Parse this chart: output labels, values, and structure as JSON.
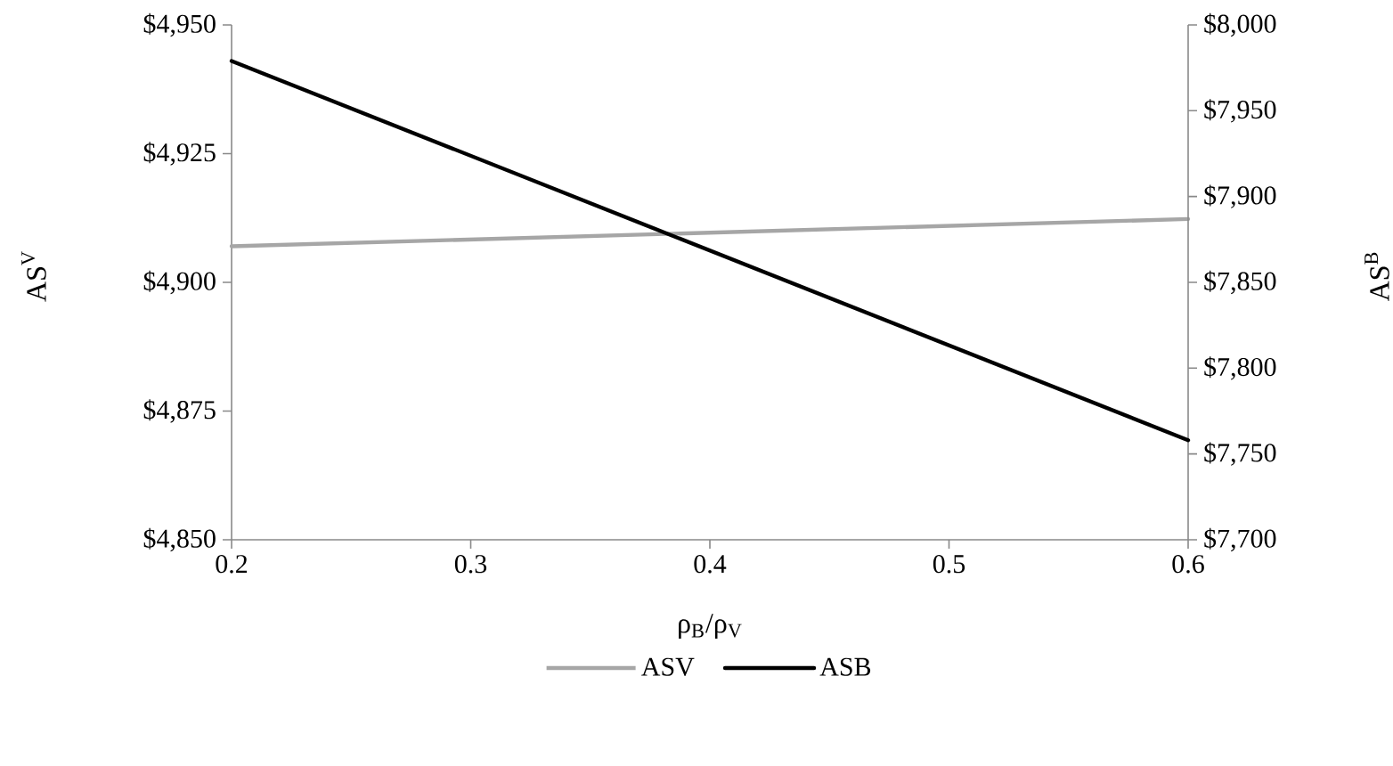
{
  "chart_data": {
    "type": "line",
    "xlabel": "ρ$_{B}$/ρ$_{V}$",
    "ylabel": "AS$^{V}$",
    "y2label": "AS$^{B}$",
    "x": [
      0.2,
      0.6
    ],
    "series": [
      {
        "name": "ASV",
        "color": "#a6a6a6",
        "values": [
          4907,
          4912.3
        ]
      },
      {
        "name": "ASB",
        "color": "#000000",
        "values": [
          7979,
          7758
        ],
        "axis": "y2"
      }
    ],
    "xlim": [
      0.2,
      0.6
    ],
    "xticks": [
      0.2,
      0.3,
      0.4,
      0.5,
      0.6
    ],
    "ylim": [
      4850,
      4950
    ],
    "yticks": [
      {
        "value": 4850,
        "label": "$4,850"
      },
      {
        "value": 4875,
        "label": "$4,875"
      },
      {
        "value": 4900,
        "label": "$4,900"
      },
      {
        "value": 4925,
        "label": "$4,925"
      },
      {
        "value": 4950,
        "label": "$4,950"
      }
    ],
    "y2lim": [
      7700,
      8000
    ],
    "y2ticks": [
      {
        "value": 7700,
        "label": "$7,700"
      },
      {
        "value": 7750,
        "label": "$7,750"
      },
      {
        "value": 7800,
        "label": "$7,800"
      },
      {
        "value": 7850,
        "label": "$7,850"
      },
      {
        "value": 7900,
        "label": "$7,900"
      },
      {
        "value": 7950,
        "label": "$7,950"
      },
      {
        "value": 8000,
        "label": "$8,000"
      }
    ],
    "grid": false,
    "legend": "bottom",
    "marker": "none",
    "line_style": "solid"
  }
}
